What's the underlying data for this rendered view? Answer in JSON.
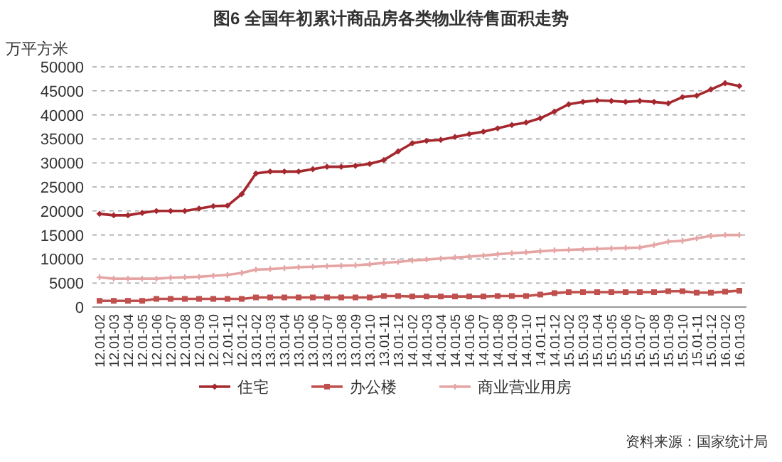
{
  "chart_data": {
    "type": "line",
    "title": "图6  全国年初累计商品房各类物业待售面积走势",
    "ylabel": "万平方米",
    "categories": [
      "12.01-02",
      "12.01-03",
      "12.01-04",
      "12.01-05",
      "12.01-06",
      "12.01-07",
      "12.01-08",
      "12.01-09",
      "12.01-10",
      "12.01-11",
      "12.01-12",
      "13.01-02",
      "13.01-03",
      "13.01-04",
      "13.01-05",
      "13.01-06",
      "13.01-07",
      "13.01-08",
      "13.01-09",
      "13.01-10",
      "13.01-11",
      "13.01-12",
      "14.01-02",
      "14.01-03",
      "14.01-04",
      "14.01-05",
      "14.01-06",
      "14.01-07",
      "14.01-08",
      "14.01-09",
      "14.01-10",
      "14.01-11",
      "14.01-12",
      "15.01-02",
      "15.01-03",
      "15.01-04",
      "15.01-05",
      "15.01-06",
      "15.01-07",
      "15.01-08",
      "15.01-09",
      "15.01-10",
      "15.01-11",
      "15.01-12",
      "16.01-02",
      "16.01-03"
    ],
    "series": [
      {
        "name": "住宅",
        "color": "#a5282e",
        "marker": "diamond",
        "values": [
          19400,
          19100,
          19100,
          19600,
          20000,
          20000,
          20000,
          20500,
          21000,
          21100,
          23500,
          27800,
          28200,
          28200,
          28200,
          28700,
          29200,
          29200,
          29400,
          29800,
          30600,
          32400,
          34100,
          34600,
          34800,
          35400,
          36000,
          36500,
          37200,
          37900,
          38400,
          39300,
          40700,
          42200,
          42700,
          43000,
          42900,
          42700,
          42900,
          42700,
          42400,
          43700,
          44000,
          45300,
          46600,
          46000
        ]
      },
      {
        "name": "办公楼",
        "color": "#c0504d",
        "marker": "square",
        "values": [
          1300,
          1300,
          1300,
          1300,
          1700,
          1700,
          1700,
          1700,
          1700,
          1700,
          1700,
          2000,
          2000,
          2000,
          2000,
          2000,
          2000,
          2000,
          2000,
          2000,
          2300,
          2300,
          2200,
          2200,
          2200,
          2200,
          2200,
          2200,
          2300,
          2300,
          2300,
          2600,
          2900,
          3100,
          3100,
          3100,
          3100,
          3100,
          3100,
          3100,
          3300,
          3300,
          3000,
          3000,
          3200,
          3400
        ]
      },
      {
        "name": "商业营业用房",
        "color": "#e6a5a5",
        "marker": "cross",
        "values": [
          6200,
          5900,
          5900,
          5900,
          5900,
          6100,
          6200,
          6300,
          6500,
          6700,
          7100,
          7800,
          7900,
          8100,
          8300,
          8400,
          8500,
          8600,
          8700,
          8900,
          9200,
          9400,
          9700,
          9900,
          10100,
          10300,
          10500,
          10700,
          11000,
          11200,
          11400,
          11600,
          11800,
          11900,
          12000,
          12100,
          12200,
          12300,
          12400,
          12900,
          13600,
          13800,
          14300,
          14800,
          15000,
          15000
        ]
      }
    ],
    "ylim": [
      0,
      50000
    ],
    "yticks": [
      0,
      5000,
      10000,
      15000,
      20000,
      25000,
      30000,
      35000,
      40000,
      45000,
      50000
    ],
    "grid": "y",
    "legend": "bottom",
    "line_style": "solid",
    "annotations": [
      "资料来源：国家统计局"
    ]
  }
}
